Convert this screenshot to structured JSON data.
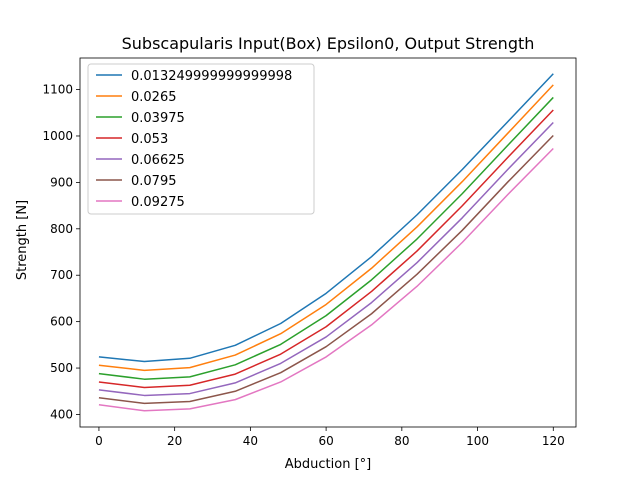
{
  "chart_data": {
    "type": "line",
    "title": "Subscapularis Input(Box) Epsilon0, Output Strength",
    "xlabel": "Abduction [°]",
    "ylabel": "Strength [N]",
    "xlim": [
      -5,
      126
    ],
    "ylim": [
      373,
      1168
    ],
    "xticks": [
      0,
      20,
      40,
      60,
      80,
      100,
      120
    ],
    "yticks": [
      400,
      500,
      600,
      700,
      800,
      900,
      1000,
      1100
    ],
    "legend_position": "top-left",
    "grid": false,
    "x": [
      0,
      12,
      24,
      36,
      48,
      60,
      72,
      84,
      96,
      108,
      120
    ],
    "series": [
      {
        "name": "0.013249999999999998",
        "color": "#1f77b4",
        "values": [
          524,
          514,
          521,
          549,
          596,
          661,
          740,
          830,
          928,
          1031,
          1134
        ]
      },
      {
        "name": "0.0265",
        "color": "#ff7f0e",
        "values": [
          506,
          495,
          501,
          528,
          574,
          637,
          715,
          804,
          902,
          1006,
          1110
        ]
      },
      {
        "name": "0.03975",
        "color": "#2ca02c",
        "values": [
          488,
          476,
          481,
          507,
          551,
          613,
          690,
          778,
          876,
          980,
          1083
        ]
      },
      {
        "name": "0.053",
        "color": "#d62728",
        "values": [
          470,
          458,
          463,
          487,
          530,
          589,
          665,
          752,
          850,
          954,
          1056
        ]
      },
      {
        "name": "0.06625",
        "color": "#9467bd",
        "values": [
          453,
          441,
          445,
          468,
          510,
          567,
          641,
          727,
          824,
          928,
          1029
        ]
      },
      {
        "name": "0.0795",
        "color": "#8c564b",
        "values": [
          436,
          424,
          428,
          450,
          490,
          546,
          617,
          702,
          797,
          901,
          1001
        ]
      },
      {
        "name": "0.09275",
        "color": "#e377c2",
        "values": [
          421,
          408,
          412,
          432,
          470,
          524,
          593,
          676,
          771,
          874,
          973
        ]
      }
    ]
  }
}
